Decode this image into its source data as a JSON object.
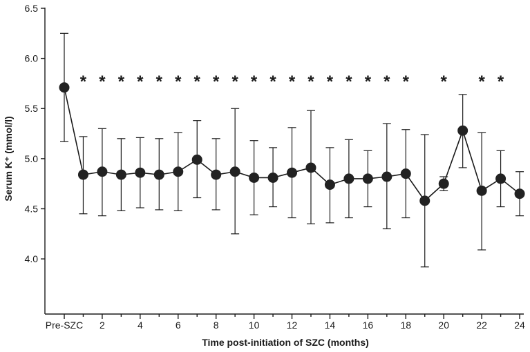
{
  "chart_data": {
    "type": "line",
    "title": "",
    "xlabel": "Time post-initiation of SZC (months)",
    "ylabel": "Serum K⁺ (mmol/l)",
    "ylim": [
      3.45,
      6.5
    ],
    "xlim": [
      -1,
      24
    ],
    "y_ticks": [
      4.0,
      4.5,
      5.0,
      5.5,
      6.0,
      6.5
    ],
    "y_tick_labels": [
      "4.0",
      "4.5",
      "5.0",
      "5.5",
      "6.0",
      "6.5"
    ],
    "x_ticks": [
      0,
      2,
      4,
      6,
      8,
      10,
      12,
      14,
      16,
      18,
      20,
      22,
      24
    ],
    "x_tick_labels": [
      "Pre-SZC",
      "2",
      "4",
      "6",
      "8",
      "10",
      "12",
      "14",
      "16",
      "18",
      "20",
      "22",
      "24"
    ],
    "x_minor_ticks": [
      1,
      3,
      5,
      7,
      9,
      11,
      13,
      15,
      17,
      19,
      21,
      23
    ],
    "grid": false,
    "marker_color": "#222222",
    "series": [
      {
        "name": "Serum K+",
        "x": [
          0,
          1,
          2,
          3,
          4,
          5,
          6,
          7,
          8,
          9,
          10,
          11,
          12,
          13,
          14,
          15,
          16,
          17,
          18,
          19,
          20,
          21,
          22,
          23,
          24
        ],
        "values": [
          5.71,
          4.84,
          4.87,
          4.84,
          4.86,
          4.84,
          4.87,
          4.99,
          4.84,
          4.87,
          4.81,
          4.81,
          4.86,
          4.91,
          4.74,
          4.8,
          4.8,
          4.82,
          4.85,
          4.58,
          4.75,
          5.28,
          4.68,
          4.8,
          4.65
        ],
        "err_upper": [
          6.25,
          5.22,
          5.3,
          5.2,
          5.21,
          5.2,
          5.26,
          5.38,
          5.2,
          5.5,
          5.18,
          5.11,
          5.31,
          5.48,
          5.11,
          5.19,
          5.08,
          5.35,
          5.29,
          5.24,
          4.82,
          5.64,
          5.26,
          5.08,
          4.87
        ],
        "err_lower": [
          5.17,
          4.45,
          4.43,
          4.48,
          4.51,
          4.49,
          4.48,
          4.61,
          4.49,
          4.25,
          4.44,
          4.52,
          4.41,
          4.35,
          4.36,
          4.41,
          4.52,
          4.3,
          4.41,
          3.92,
          4.68,
          4.91,
          4.09,
          4.52,
          4.43
        ]
      }
    ],
    "significance_marker": "*",
    "significant_x": [
      1,
      2,
      3,
      4,
      5,
      6,
      7,
      8,
      9,
      10,
      11,
      12,
      13,
      14,
      15,
      16,
      17,
      18,
      20,
      22,
      23
    ]
  }
}
